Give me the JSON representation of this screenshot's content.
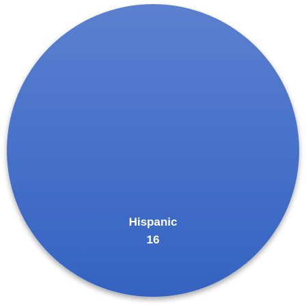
{
  "chart_data": {
    "type": "pie",
    "title": "",
    "slices": [
      {
        "label": "Hispanic",
        "value": 16,
        "color": "#4472c4"
      }
    ],
    "data_labels": {
      "show_category": true,
      "show_value": true
    },
    "legend": "none"
  }
}
